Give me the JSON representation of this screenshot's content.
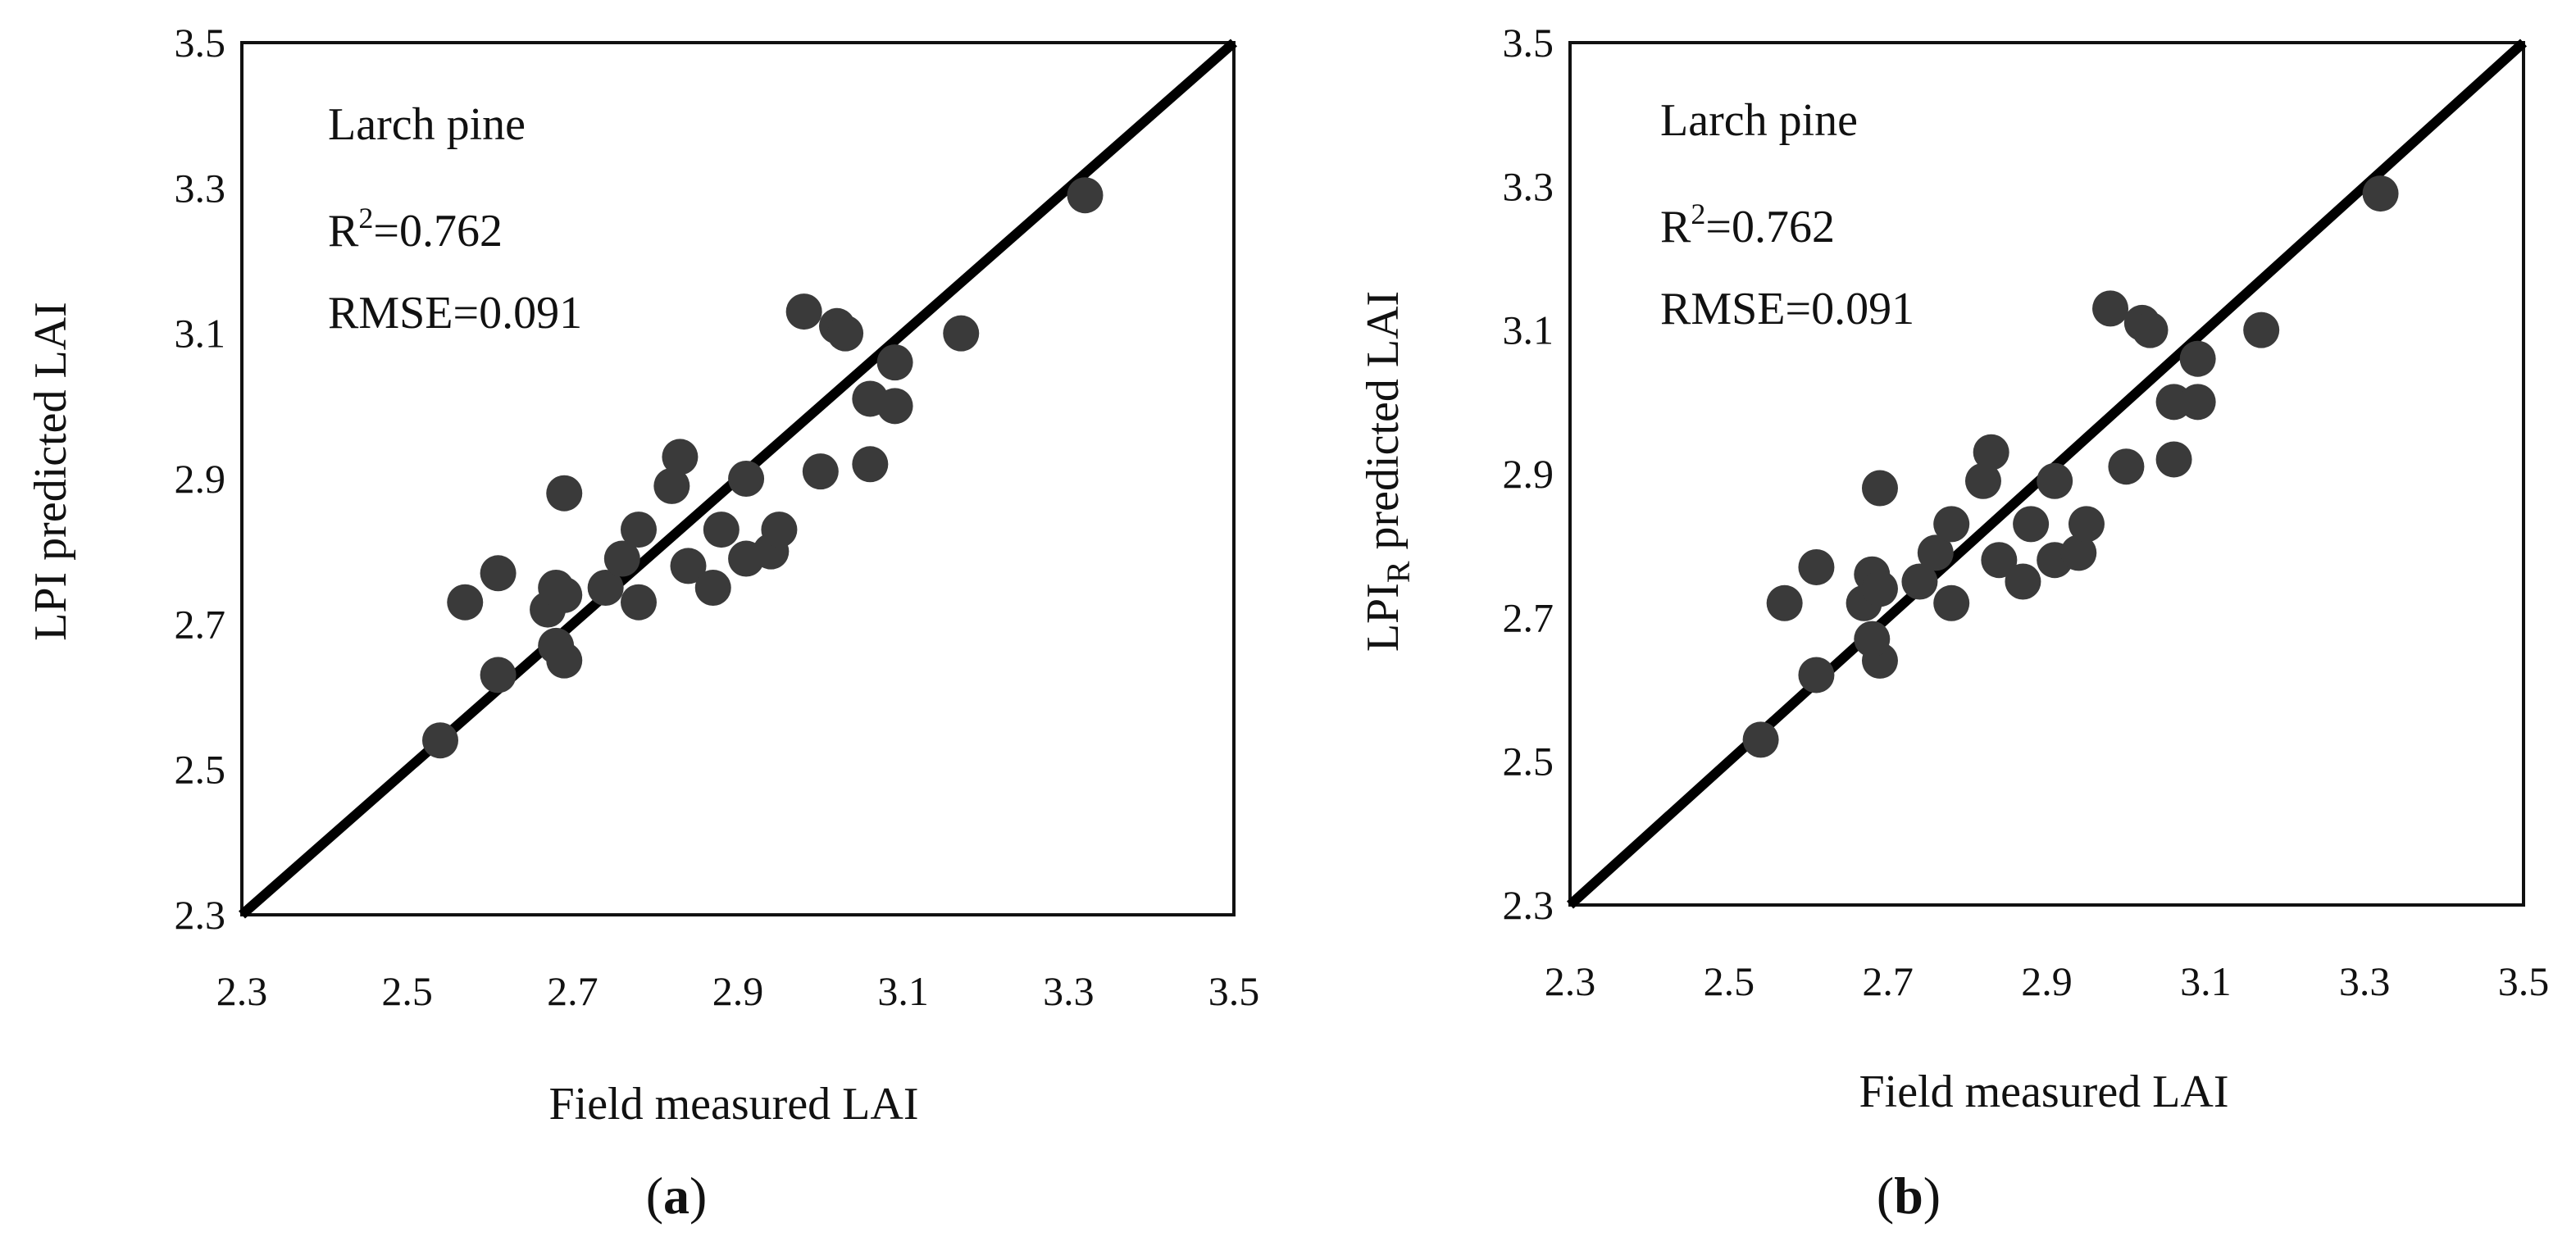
{
  "chart_data": [
    {
      "panel": "a",
      "type": "scatter",
      "panel_label_letter": "a",
      "xlabel": "Field measured LAI",
      "ylabel": "LPI predicted LAI",
      "ylabel_subscript": "",
      "xlim": [
        2.3,
        3.5
      ],
      "ylim": [
        2.3,
        3.5
      ],
      "xticks": [
        "2.3",
        "2.5",
        "2.7",
        "2.9",
        "3.1",
        "3.3",
        "3.5"
      ],
      "yticks": [
        "2.3",
        "2.5",
        "2.7",
        "2.9",
        "3.1",
        "3.3",
        "3.5"
      ],
      "annotations": {
        "species": "Larch pine",
        "r2_prefix": "R",
        "r2_sup": "2",
        "r2_value": "=0.762",
        "rmse": "RMSE=0.091"
      },
      "line": {
        "x": [
          2.3,
          3.5
        ],
        "y": [
          2.3,
          3.5
        ],
        "label": "1:1 line"
      },
      "points": [
        {
          "x": 2.54,
          "y": 2.54
        },
        {
          "x": 2.57,
          "y": 2.73
        },
        {
          "x": 2.61,
          "y": 2.77
        },
        {
          "x": 2.61,
          "y": 2.63
        },
        {
          "x": 2.67,
          "y": 2.72
        },
        {
          "x": 2.68,
          "y": 2.75
        },
        {
          "x": 2.69,
          "y": 2.74
        },
        {
          "x": 2.69,
          "y": 2.88
        },
        {
          "x": 2.69,
          "y": 2.65
        },
        {
          "x": 2.68,
          "y": 2.67
        },
        {
          "x": 2.74,
          "y": 2.75
        },
        {
          "x": 2.76,
          "y": 2.79
        },
        {
          "x": 2.78,
          "y": 2.83
        },
        {
          "x": 2.78,
          "y": 2.73
        },
        {
          "x": 2.82,
          "y": 2.89
        },
        {
          "x": 2.83,
          "y": 2.93
        },
        {
          "x": 2.84,
          "y": 2.78
        },
        {
          "x": 2.87,
          "y": 2.75
        },
        {
          "x": 2.88,
          "y": 2.83
        },
        {
          "x": 2.91,
          "y": 2.9
        },
        {
          "x": 2.91,
          "y": 2.79
        },
        {
          "x": 2.94,
          "y": 2.8
        },
        {
          "x": 2.95,
          "y": 2.83
        },
        {
          "x": 2.98,
          "y": 3.13
        },
        {
          "x": 3.0,
          "y": 2.91
        },
        {
          "x": 3.02,
          "y": 3.11
        },
        {
          "x": 3.03,
          "y": 3.1
        },
        {
          "x": 3.06,
          "y": 3.01
        },
        {
          "x": 3.06,
          "y": 2.92
        },
        {
          "x": 3.09,
          "y": 3.06
        },
        {
          "x": 3.09,
          "y": 3.0
        },
        {
          "x": 3.17,
          "y": 3.1
        },
        {
          "x": 3.32,
          "y": 3.29
        }
      ]
    },
    {
      "panel": "b",
      "type": "scatter",
      "panel_label_letter": "b",
      "xlabel": "Field measured LAI",
      "ylabel": "LPI",
      "ylabel_subscript": "R",
      "ylabel_rest": " predicted LAI",
      "xlim": [
        2.3,
        3.5
      ],
      "ylim": [
        2.3,
        3.5
      ],
      "xticks": [
        "2.3",
        "2.5",
        "2.7",
        "2.9",
        "3.1",
        "3.3",
        "3.5"
      ],
      "yticks": [
        "2.3",
        "2.5",
        "2.7",
        "2.9",
        "3.1",
        "3.3",
        "3.5"
      ],
      "annotations": {
        "species": "Larch pine",
        "r2_prefix": "R",
        "r2_sup": "2",
        "r2_value": "=0.762",
        "rmse": "RMSE=0.091"
      },
      "line": {
        "x": [
          2.3,
          3.5
        ],
        "y": [
          2.3,
          3.5
        ],
        "label": "1:1 line"
      },
      "points": [
        {
          "x": 2.54,
          "y": 2.53
        },
        {
          "x": 2.57,
          "y": 2.72
        },
        {
          "x": 2.61,
          "y": 2.77
        },
        {
          "x": 2.61,
          "y": 2.62
        },
        {
          "x": 2.67,
          "y": 2.72
        },
        {
          "x": 2.68,
          "y": 2.76
        },
        {
          "x": 2.69,
          "y": 2.74
        },
        {
          "x": 2.69,
          "y": 2.88
        },
        {
          "x": 2.69,
          "y": 2.64
        },
        {
          "x": 2.68,
          "y": 2.67
        },
        {
          "x": 2.74,
          "y": 2.75
        },
        {
          "x": 2.76,
          "y": 2.79
        },
        {
          "x": 2.78,
          "y": 2.83
        },
        {
          "x": 2.78,
          "y": 2.72
        },
        {
          "x": 2.82,
          "y": 2.89
        },
        {
          "x": 2.83,
          "y": 2.93
        },
        {
          "x": 2.84,
          "y": 2.78
        },
        {
          "x": 2.87,
          "y": 2.75
        },
        {
          "x": 2.88,
          "y": 2.83
        },
        {
          "x": 2.91,
          "y": 2.89
        },
        {
          "x": 2.91,
          "y": 2.78
        },
        {
          "x": 2.94,
          "y": 2.79
        },
        {
          "x": 2.95,
          "y": 2.83
        },
        {
          "x": 2.98,
          "y": 3.13
        },
        {
          "x": 3.0,
          "y": 2.91
        },
        {
          "x": 3.02,
          "y": 3.11
        },
        {
          "x": 3.03,
          "y": 3.1
        },
        {
          "x": 3.06,
          "y": 3.0
        },
        {
          "x": 3.06,
          "y": 2.92
        },
        {
          "x": 3.09,
          "y": 3.06
        },
        {
          "x": 3.09,
          "y": 3.0
        },
        {
          "x": 3.17,
          "y": 3.1
        },
        {
          "x": 3.32,
          "y": 3.29
        }
      ]
    }
  ]
}
